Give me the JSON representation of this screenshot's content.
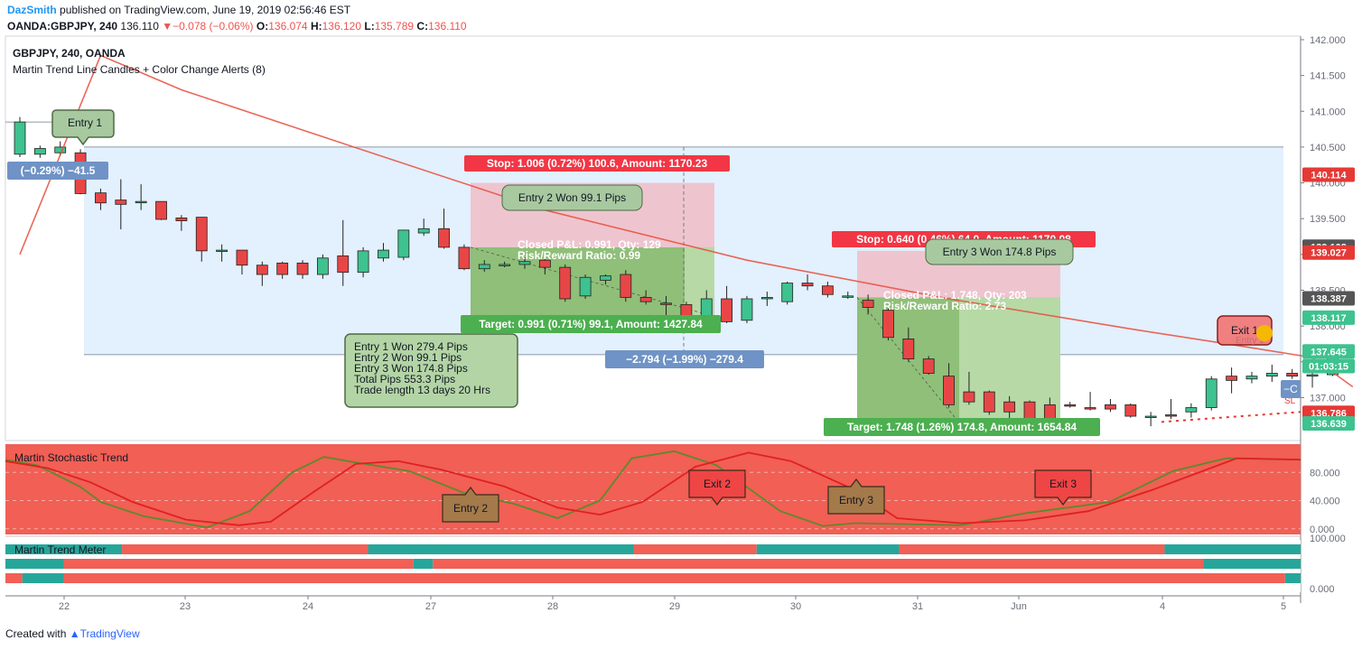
{
  "header": {
    "user": "DazSmith",
    "published": "published on TradingView.com, June 19, 2019 02:56:46 EST",
    "symbol": "OANDA:GBPJPY, 240",
    "last": "136.110",
    "change": "−0.078 (−0.06%)",
    "o_label": "O:",
    "o": "136.074",
    "h_label": "H:",
    "h": "136.120",
    "l_label": "L:",
    "l": "135.789",
    "c_label": "C:",
    "c": "136.110"
  },
  "legend": {
    "title": "GBPJPY, 240, OANDA",
    "indicator": "Martin Trend Line Candles + Color Change Alerts (8)"
  },
  "footer": {
    "created": "Created with",
    "brand": "TradingView"
  },
  "colors": {
    "up": "#3ec28f",
    "down": "#e84646",
    "bg_red": "#f15f55",
    "teal": "#26a69a",
    "blue_zone": "#e3f0fd"
  },
  "chart_data": [
    {
      "type": "candlestick",
      "title": "GBPJPY, 240, OANDA",
      "x_labels": [
        "22",
        "23",
        "24",
        "27",
        "28",
        "29",
        "30",
        "31",
        "Jun",
        "4",
        "5"
      ],
      "y_ticks": [
        "142.000",
        "141.500",
        "141.000",
        "140.500",
        "140.000",
        "139.500",
        "139.000",
        "138.500",
        "138.000",
        "137.500",
        "137.000"
      ],
      "ylim": [
        136.4,
        142.05
      ],
      "price_labels": [
        {
          "text": "140.114",
          "value": 140.114,
          "color": "#e53935"
        },
        {
          "text": "139.108",
          "value": 139.108,
          "color": "#555555"
        },
        {
          "text": "139.027",
          "value": 139.027,
          "color": "#e53935"
        },
        {
          "text": "138.387",
          "value": 138.387,
          "color": "#555555"
        },
        {
          "text": "138.117",
          "value": 138.117,
          "color": "#3ec28f"
        },
        {
          "text": "137.645",
          "value": 137.645,
          "color": "#3ec28f"
        },
        {
          "text": "01:03:15",
          "value": 137.44,
          "color": "#3ec28f"
        },
        {
          "text": "136.786",
          "value": 136.786,
          "color": "#e53935"
        },
        {
          "text": "136.786",
          "value": 136.786,
          "color": "#e53935"
        },
        {
          "text": "136.639",
          "value": 136.639,
          "color": "#3ec28f"
        }
      ],
      "candles": [
        {
          "o": 140.4,
          "h": 140.92,
          "l": 140.36,
          "c": 140.85
        },
        {
          "o": 140.4,
          "h": 140.52,
          "l": 140.35,
          "c": 140.48
        },
        {
          "o": 140.42,
          "h": 140.58,
          "l": 140.38,
          "c": 140.5
        },
        {
          "o": 140.42,
          "h": 140.47,
          "l": 139.84,
          "c": 139.85
        },
        {
          "o": 139.86,
          "h": 139.92,
          "l": 139.62,
          "c": 139.72
        },
        {
          "o": 139.76,
          "h": 140.05,
          "l": 139.35,
          "c": 139.7
        },
        {
          "o": 139.74,
          "h": 139.98,
          "l": 139.62,
          "c": 139.74
        },
        {
          "o": 139.74,
          "h": 139.74,
          "l": 139.48,
          "c": 139.49
        },
        {
          "o": 139.51,
          "h": 139.55,
          "l": 139.33,
          "c": 139.47
        },
        {
          "o": 139.52,
          "h": 139.52,
          "l": 138.9,
          "c": 139.05
        },
        {
          "o": 139.06,
          "h": 139.14,
          "l": 138.9,
          "c": 139.06
        },
        {
          "o": 139.06,
          "h": 139.06,
          "l": 138.72,
          "c": 138.85
        },
        {
          "o": 138.85,
          "h": 138.9,
          "l": 138.56,
          "c": 138.72
        },
        {
          "o": 138.88,
          "h": 138.9,
          "l": 138.66,
          "c": 138.72
        },
        {
          "o": 138.88,
          "h": 138.92,
          "l": 138.66,
          "c": 138.72
        },
        {
          "o": 138.72,
          "h": 139.0,
          "l": 138.66,
          "c": 138.95
        },
        {
          "o": 138.98,
          "h": 139.48,
          "l": 138.56,
          "c": 138.75
        },
        {
          "o": 138.75,
          "h": 139.1,
          "l": 138.68,
          "c": 139.05
        },
        {
          "o": 138.95,
          "h": 139.16,
          "l": 138.9,
          "c": 139.06
        },
        {
          "o": 138.96,
          "h": 139.3,
          "l": 138.92,
          "c": 139.34
        },
        {
          "o": 139.3,
          "h": 139.5,
          "l": 139.26,
          "c": 139.36
        },
        {
          "o": 139.36,
          "h": 139.64,
          "l": 139.08,
          "c": 139.1
        },
        {
          "o": 139.1,
          "h": 139.14,
          "l": 138.78,
          "c": 138.8
        },
        {
          "o": 138.8,
          "h": 138.92,
          "l": 138.76,
          "c": 138.86
        },
        {
          "o": 138.85,
          "h": 138.9,
          "l": 138.82,
          "c": 138.86
        },
        {
          "o": 138.86,
          "h": 138.96,
          "l": 138.8,
          "c": 138.9
        },
        {
          "o": 138.92,
          "h": 138.98,
          "l": 138.72,
          "c": 138.82
        },
        {
          "o": 138.82,
          "h": 138.86,
          "l": 138.34,
          "c": 138.38
        },
        {
          "o": 138.42,
          "h": 138.72,
          "l": 138.38,
          "c": 138.68
        },
        {
          "o": 138.64,
          "h": 138.72,
          "l": 138.58,
          "c": 138.7
        },
        {
          "o": 138.72,
          "h": 138.78,
          "l": 138.34,
          "c": 138.4
        },
        {
          "o": 138.4,
          "h": 138.5,
          "l": 138.3,
          "c": 138.34
        },
        {
          "o": 138.32,
          "h": 138.42,
          "l": 138.1,
          "c": 138.3
        },
        {
          "o": 138.3,
          "h": 138.34,
          "l": 138.08,
          "c": 138.14
        },
        {
          "o": 138.14,
          "h": 138.5,
          "l": 138.04,
          "c": 138.38
        },
        {
          "o": 138.38,
          "h": 138.56,
          "l": 138.04,
          "c": 138.06
        },
        {
          "o": 138.08,
          "h": 138.42,
          "l": 138.04,
          "c": 138.38
        },
        {
          "o": 138.38,
          "h": 138.48,
          "l": 138.28,
          "c": 138.4
        },
        {
          "o": 138.34,
          "h": 138.62,
          "l": 138.3,
          "c": 138.6
        },
        {
          "o": 138.6,
          "h": 138.72,
          "l": 138.5,
          "c": 138.56
        },
        {
          "o": 138.56,
          "h": 138.62,
          "l": 138.4,
          "c": 138.44
        },
        {
          "o": 138.42,
          "h": 138.48,
          "l": 138.38,
          "c": 138.42
        },
        {
          "o": 138.36,
          "h": 138.44,
          "l": 138.16,
          "c": 138.26
        },
        {
          "o": 138.22,
          "h": 138.26,
          "l": 137.8,
          "c": 137.84
        },
        {
          "o": 137.82,
          "h": 137.98,
          "l": 137.5,
          "c": 137.54
        },
        {
          "o": 137.54,
          "h": 137.58,
          "l": 137.32,
          "c": 137.34
        },
        {
          "o": 137.3,
          "h": 137.48,
          "l": 136.86,
          "c": 136.9
        },
        {
          "o": 137.08,
          "h": 137.36,
          "l": 136.9,
          "c": 136.94
        },
        {
          "o": 137.08,
          "h": 137.1,
          "l": 136.76,
          "c": 136.8
        },
        {
          "o": 136.94,
          "h": 137.02,
          "l": 136.7,
          "c": 136.8
        },
        {
          "o": 136.94,
          "h": 136.96,
          "l": 136.66,
          "c": 136.7
        },
        {
          "o": 136.9,
          "h": 137.0,
          "l": 136.66,
          "c": 136.7
        },
        {
          "o": 136.9,
          "h": 136.94,
          "l": 136.86,
          "c": 136.88
        },
        {
          "o": 136.86,
          "h": 137.08,
          "l": 136.82,
          "c": 136.84
        },
        {
          "o": 136.9,
          "h": 136.98,
          "l": 136.8,
          "c": 136.84
        },
        {
          "o": 136.9,
          "h": 136.92,
          "l": 136.72,
          "c": 136.74
        },
        {
          "o": 136.74,
          "h": 136.8,
          "l": 136.6,
          "c": 136.74
        },
        {
          "o": 136.76,
          "h": 136.98,
          "l": 136.7,
          "c": 136.74
        },
        {
          "o": 136.8,
          "h": 136.92,
          "l": 136.72,
          "c": 136.86
        },
        {
          "o": 136.86,
          "h": 137.3,
          "l": 136.82,
          "c": 137.26
        },
        {
          "o": 137.3,
          "h": 137.42,
          "l": 137.06,
          "c": 137.24
        },
        {
          "o": 137.26,
          "h": 137.36,
          "l": 137.2,
          "c": 137.3
        },
        {
          "o": 137.3,
          "h": 137.46,
          "l": 137.22,
          "c": 137.34
        },
        {
          "o": 137.34,
          "h": 137.4,
          "l": 137.26,
          "c": 137.3
        },
        {
          "o": 137.3,
          "h": 137.4,
          "l": 137.14,
          "c": 137.32
        },
        {
          "o": 137.32,
          "h": 137.64,
          "l": 137.3,
          "c": 137.6
        }
      ],
      "trend_line": [
        [
          0,
          139.0
        ],
        [
          4,
          141.78
        ],
        [
          8,
          141.3
        ],
        [
          16,
          140.55
        ],
        [
          26,
          139.62
        ],
        [
          36,
          138.92
        ],
        [
          46,
          138.38
        ],
        [
          55,
          137.96
        ],
        [
          60,
          137.74
        ],
        [
          64,
          137.56
        ],
        [
          66,
          137.15
        ]
      ],
      "annotations": [
        {
          "kind": "bubble",
          "text": "Entry 1",
          "fill": "#a8c9a0",
          "stroke": "#4e6b45"
        },
        {
          "kind": "blue_label",
          "text": "(−0.29%) −41.5"
        },
        {
          "kind": "red_label",
          "text": "Stop: 1.006 (0.72%) 100.6, Amount: 1170.23"
        },
        {
          "kind": "box",
          "text": "Entry 2 Won 99.1 Pips"
        },
        {
          "kind": "inner_label",
          "text": "Closed P&L: 0.991, Qty: 129"
        },
        {
          "kind": "inner_label",
          "text": "Risk/Reward Ratio: 0.99"
        },
        {
          "kind": "green_label",
          "text": "Target: 0.991 (0.71%) 99.1, Amount: 1427.84"
        },
        {
          "kind": "blue_label",
          "text": "−2.794 (−1.99%) −279.4"
        },
        {
          "kind": "red_label",
          "text": "Stop: 0.640 (0.46%) 64.0, Amount: 1170.08"
        },
        {
          "kind": "box",
          "text": "Entry 3 Won 174.8 Pips"
        },
        {
          "kind": "inner_label",
          "text": "Closed P&L: 1.748, Qty: 203"
        },
        {
          "kind": "inner_label",
          "text": "Risk/Reward Ratio: 2.73"
        },
        {
          "kind": "green_label",
          "text": "Target: 1.748 (1.26%) 174.8, Amount: 1654.84"
        },
        {
          "kind": "bubble",
          "text": "Exit 1",
          "fill": "#f08080",
          "stroke": "#8b1e1e"
        },
        {
          "kind": "faded",
          "text": "Entry 1"
        },
        {
          "kind": "small",
          "text": "SL"
        },
        {
          "kind": "blue_label",
          "text": "−C"
        }
      ],
      "summary": [
        "Entry 1 Won  279.4 Pips",
        "Entry 2 Won 99.1 Pips",
        "Entry 3 Won 174.8 Pips",
        "Total Pips 553.3 Pips",
        "Trade length 13 days 20 Hrs"
      ]
    },
    {
      "type": "line",
      "title": "Martin Stochastic Trend",
      "y_ticks": [
        "80.000",
        "40.000",
        "0.000"
      ],
      "ylim": [
        -8,
        120
      ],
      "series": [
        {
          "color": "#5d8a2a",
          "values": [
            [
              0,
              98
            ],
            [
              3,
              90
            ],
            [
              7,
              60
            ],
            [
              9,
              38
            ],
            [
              13,
              18
            ],
            [
              19,
              2
            ],
            [
              23,
              25
            ],
            [
              27,
              80
            ],
            [
              30,
              102
            ],
            [
              33,
              94
            ],
            [
              38,
              82
            ],
            [
              43,
              52
            ],
            [
              48,
              35
            ],
            [
              52,
              15
            ],
            [
              56,
              40
            ],
            [
              59,
              100
            ],
            [
              63,
              110
            ],
            [
              67,
              90
            ],
            [
              73,
              25
            ],
            [
              77,
              4
            ],
            [
              80,
              8
            ],
            [
              90,
              5
            ],
            [
              96,
              22
            ],
            [
              104,
              38
            ],
            [
              110,
              82
            ],
            [
              115,
              100
            ],
            [
              122,
              98
            ]
          ]
        },
        {
          "color": "#e02020",
          "values": [
            [
              0,
              96
            ],
            [
              4,
              86
            ],
            [
              8,
              66
            ],
            [
              12,
              38
            ],
            [
              17,
              13
            ],
            [
              22,
              5
            ],
            [
              25,
              10
            ],
            [
              29,
              52
            ],
            [
              33,
              92
            ],
            [
              37,
              96
            ],
            [
              41,
              84
            ],
            [
              47,
              60
            ],
            [
              52,
              30
            ],
            [
              56,
              20
            ],
            [
              60,
              38
            ],
            [
              65,
              88
            ],
            [
              70,
              108
            ],
            [
              74,
              96
            ],
            [
              80,
              55
            ],
            [
              84,
              15
            ],
            [
              90,
              8
            ],
            [
              96,
              12
            ],
            [
              102,
              25
            ],
            [
              108,
              55
            ],
            [
              116,
              100
            ],
            [
              122,
              98
            ]
          ]
        }
      ],
      "annotations": [
        {
          "text": "Entry 2",
          "fill": "#a47a4a"
        },
        {
          "text": "Exit 2",
          "fill": "#ef4545"
        },
        {
          "text": "Entry 3",
          "fill": "#a47a4a"
        },
        {
          "text": "Exit 3",
          "fill": "#ef4545"
        }
      ]
    },
    {
      "type": "heatmap",
      "title": "Martin Trend Meter",
      "y_ticks": [
        "100.000",
        "0.000"
      ],
      "rows": [
        [
          [
            "teal",
            0,
            0.09
          ],
          [
            "red",
            0.09,
            0.28
          ],
          [
            "teal",
            0.28,
            0.485
          ],
          [
            "red",
            0.485,
            0.58
          ],
          [
            "teal",
            0.58,
            0.69
          ],
          [
            "red",
            0.69,
            0.895
          ],
          [
            "teal",
            0.895,
            1
          ]
        ],
        [
          [
            "teal",
            0,
            0.045
          ],
          [
            "red",
            0.045,
            0.315
          ],
          [
            "teal",
            0.315,
            0.33
          ],
          [
            "red",
            0.33,
            0.925
          ],
          [
            "teal",
            0.925,
            1
          ]
        ],
        [
          [
            "red",
            0,
            0.013
          ],
          [
            "teal",
            0.013,
            0.045
          ],
          [
            "red",
            0.045,
            0.988
          ],
          [
            "teal",
            0.988,
            1
          ]
        ]
      ]
    }
  ]
}
